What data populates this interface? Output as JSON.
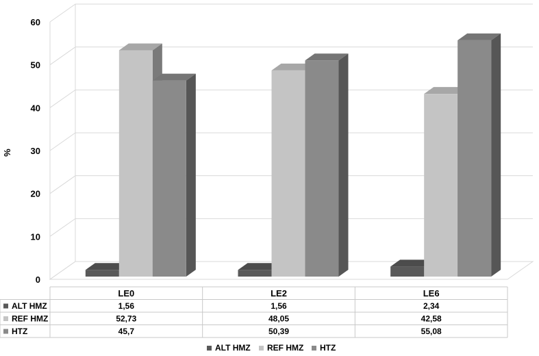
{
  "chart_data": {
    "type": "bar",
    "categories": [
      "LE0",
      "LE2",
      "LE6"
    ],
    "series": [
      {
        "name": "ALT HMZ",
        "values": [
          1.56,
          1.56,
          2.34
        ],
        "display": [
          "1,56",
          "1,56",
          "2,34"
        ],
        "color": "#595959"
      },
      {
        "name": "REF HMZ",
        "values": [
          52.73,
          48.05,
          42.58
        ],
        "display": [
          "52,73",
          "48,05",
          "42,58"
        ],
        "color": "#c4c4c4"
      },
      {
        "name": "HTZ",
        "values": [
          45.7,
          50.39,
          55.08
        ],
        "display": [
          "45,7",
          "50,39",
          "55,08"
        ],
        "color": "#8a8a8a"
      }
    ],
    "ylabel": "%",
    "ylim": [
      0,
      60
    ],
    "yticks": [
      0,
      10,
      20,
      30,
      40,
      50,
      60
    ],
    "grid": true,
    "data_table": true,
    "legend_position": "bottom",
    "style": "3d-clustered-column"
  }
}
